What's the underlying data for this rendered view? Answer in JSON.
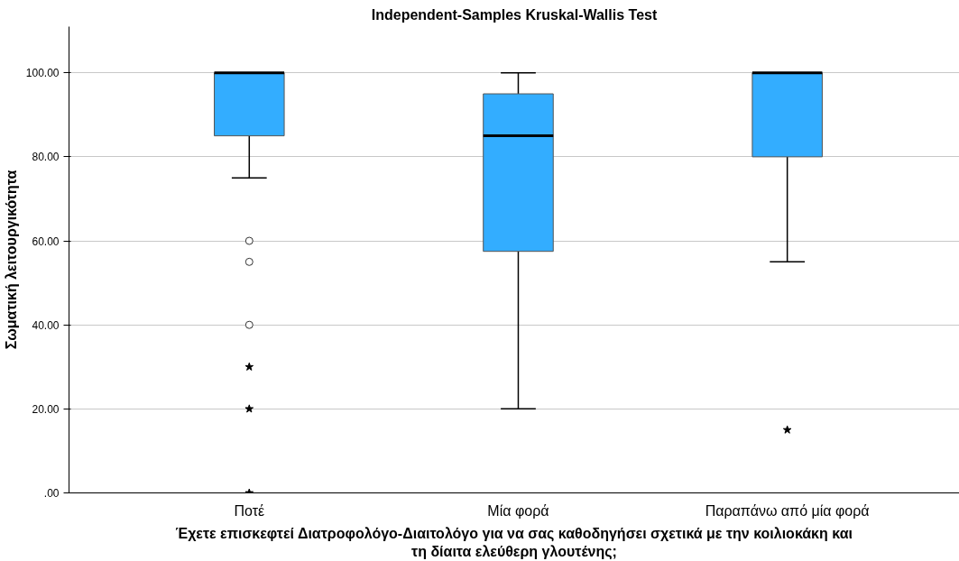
{
  "chart_data": {
    "type": "box",
    "title": "Independent-Samples Kruskal-Wallis Test",
    "xlabel": "Έχετε επισκεφτεί Διατροφολόγο-Διαιτολόγο για να σας καθοδηγήσει σχετικά με την κοιλιοκάκη και\nτη δίαιτα ελεύθερη γλουτένης;",
    "ylabel": "Σωματική λειτουργικότητα",
    "categories": [
      "Ποτέ",
      "Μία φορά",
      "Παραπάνω από μία φορά"
    ],
    "series": [
      {
        "color": "#33adff",
        "boxes": [
          {
            "low": 75,
            "q1": 85,
            "median": 100,
            "q3": 100,
            "high": 100,
            "outliers": [
              60,
              55,
              40
            ]
          },
          {
            "low": 20,
            "q1": 57.5,
            "median": 85,
            "q3": 95,
            "high": 100
          },
          {
            "low": 55,
            "q1": 80,
            "median": 100,
            "q3": 100,
            "high": 100
          }
        ]
      },
      {
        "type": "scatter",
        "marker": "star",
        "color": "#000000",
        "x": [
          "Ποτέ",
          "Ποτέ",
          "Ποτέ",
          "Παραπάνω από μία φορά"
        ],
        "values": [
          30,
          20,
          0,
          15
        ]
      }
    ],
    "ylim": [
      0,
      111
    ],
    "yticks": [
      {
        "value": 0,
        "label": ".00"
      },
      {
        "value": 20,
        "label": "20.00"
      },
      {
        "value": 40,
        "label": "40.00"
      },
      {
        "value": 60,
        "label": "60.00"
      },
      {
        "value": 80,
        "label": "80.00"
      },
      {
        "value": 100,
        "label": "100.00"
      }
    ],
    "grid": "y"
  }
}
